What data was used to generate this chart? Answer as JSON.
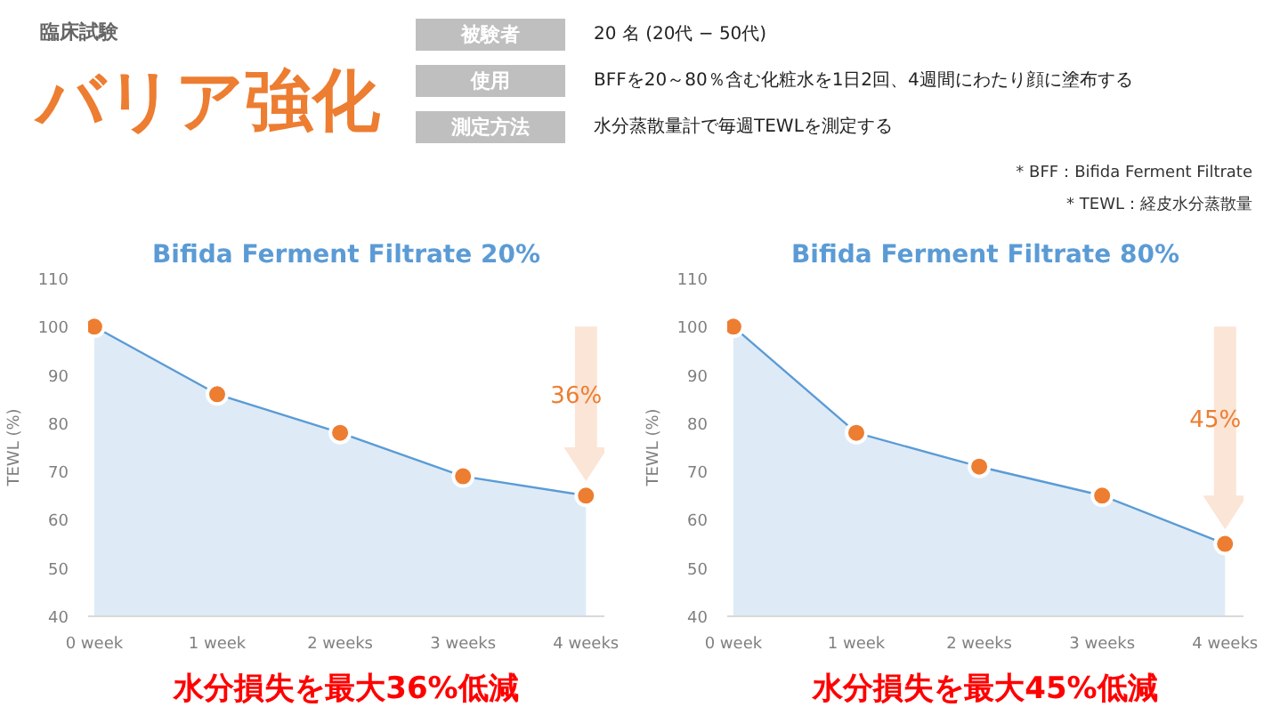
{
  "chart_data": [
    {
      "type": "other",
      "subtitle": "臨床試験",
      "title": "バリア強化",
      "annotations": [
        "被験者",
        "20 名 (20代 − 50代)",
        "使用",
        "BFFを20～80％含む化粧水を1日2回、4週間にわたり顔に塗布する",
        "測定方法",
        "水分蒸散量計で毎週TEWLを測定する",
        "* BFF：Bifida Ferment Filtrate",
        "* TEWL：経皮水分蒸散量"
      ]
    },
    {
      "type": "area",
      "title": "Bifida Ferment Filtrate 20%",
      "ylabel": "TEWL (%)",
      "categories": [
        "0 week",
        "1 week",
        "2 weeks",
        "3 weeks",
        "4 weeks"
      ],
      "series": [
        {
          "color": "#5b9bd5",
          "colors": [
            "#ed7d31",
            "#ed7d31",
            "#ed7d31",
            "#ed7d31",
            "#ed7d31"
          ],
          "values": [
            100,
            86,
            78,
            69,
            65
          ]
        }
      ],
      "ylim": [
        40,
        110
      ],
      "yticks": [
        40,
        50,
        60,
        70,
        80,
        90,
        100,
        110
      ],
      "marker": "circle",
      "grid": false,
      "annotations": [
        "36%",
        "水分損失を最大36%低減"
      ]
    },
    {
      "type": "area",
      "title": "Bifida Ferment Filtrate 80%",
      "ylabel": "TEWL (%)",
      "categories": [
        "0 week",
        "1 week",
        "2 weeks",
        "3 weeks",
        "4 weeks"
      ],
      "series": [
        {
          "color": "#5b9bd5",
          "colors": [
            "#ed7d31",
            "#ed7d31",
            "#ed7d31",
            "#ed7d31",
            "#ed7d31"
          ],
          "values": [
            100,
            78,
            71,
            65,
            55
          ]
        }
      ],
      "ylim": [
        40,
        110
      ],
      "yticks": [
        40,
        50,
        60,
        70,
        80,
        90,
        100,
        110
      ],
      "marker": "circle",
      "grid": false,
      "annotations": [
        "45%",
        "水分損失を最大45%低減"
      ]
    }
  ]
}
